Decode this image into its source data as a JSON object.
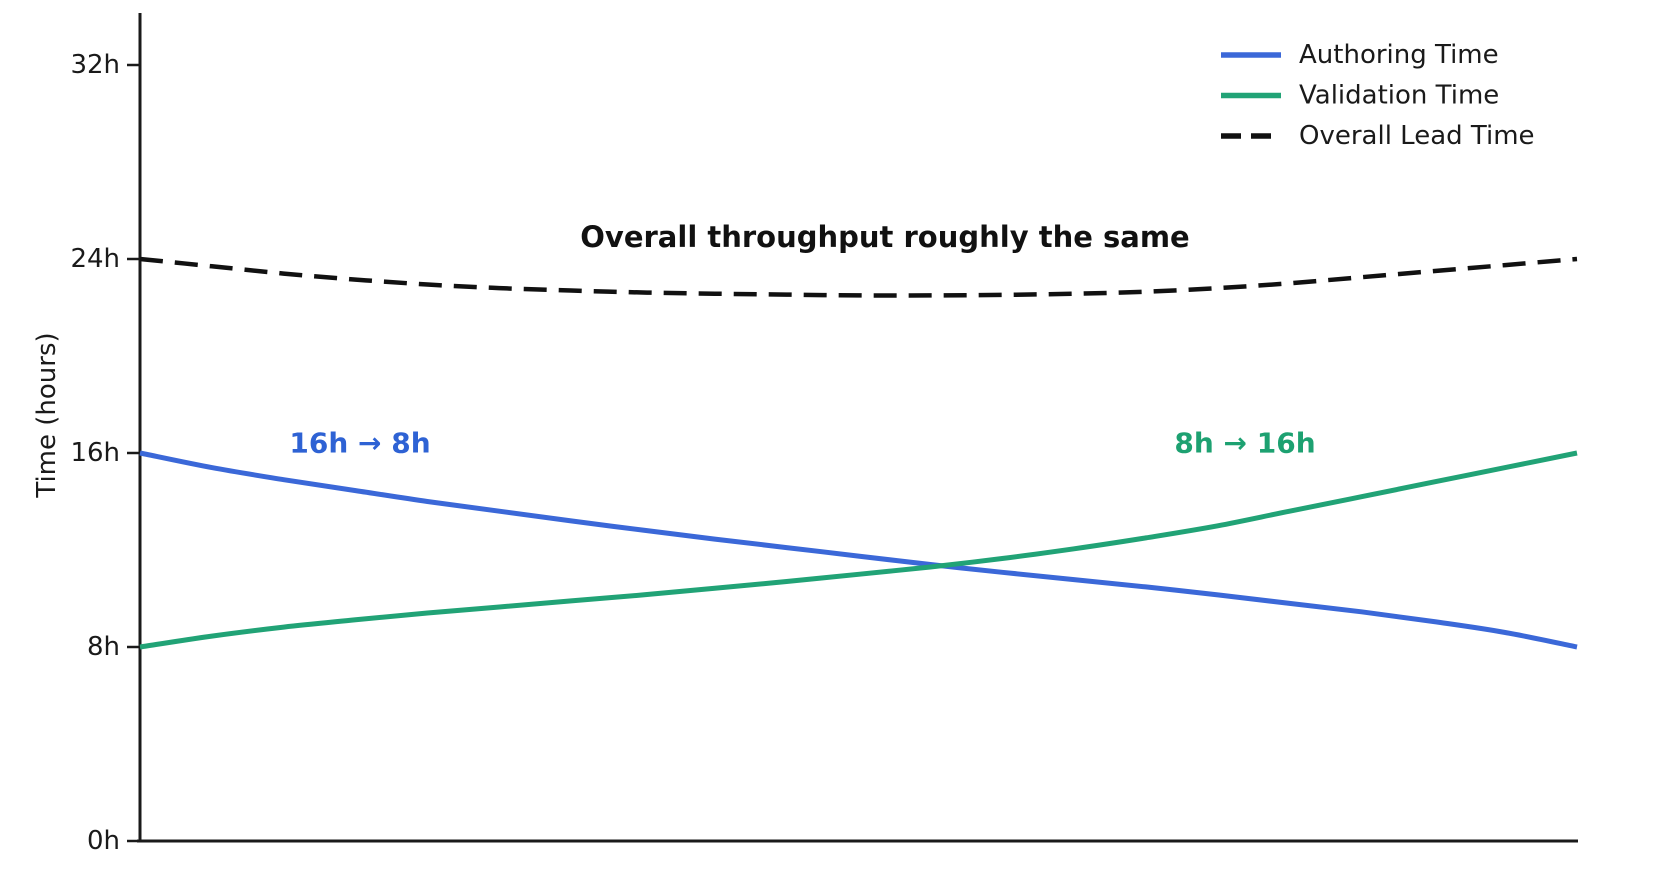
{
  "chart_data": {
    "type": "line",
    "title": "",
    "xlabel": "",
    "ylabel": "Time (hours)",
    "grid": false,
    "background": "#ffffff",
    "axis_color": "#1a1a1a",
    "legend_position": "top-right",
    "y_axis": {
      "range": [
        0,
        34
      ],
      "ticks": [
        {
          "value": 0,
          "label": "0h"
        },
        {
          "value": 8,
          "label": "8h"
        },
        {
          "value": 16,
          "label": "16h"
        },
        {
          "value": 24,
          "label": "24h"
        },
        {
          "value": 32,
          "label": "32h"
        }
      ]
    },
    "x_axis": {
      "range": [
        0,
        1
      ],
      "ticks": []
    },
    "series": [
      {
        "name": "Authoring Time",
        "color": "#3b68d8",
        "line_style": "solid",
        "values": [
          16.0,
          15.4,
          14.9,
          14.45,
          14.0,
          13.6,
          13.2,
          12.82,
          12.45,
          12.1,
          11.75,
          11.4,
          11.08,
          10.78,
          10.48,
          10.15,
          9.8,
          9.45,
          9.05,
          8.6,
          8.0
        ]
      },
      {
        "name": "Validation Time",
        "color": "#21a376",
        "line_style": "solid",
        "values": [
          8.0,
          8.45,
          8.82,
          9.12,
          9.4,
          9.65,
          9.9,
          10.15,
          10.42,
          10.7,
          11.0,
          11.3,
          11.65,
          12.05,
          12.5,
          13.0,
          13.6,
          14.2,
          14.8,
          15.4,
          16.0
        ]
      },
      {
        "name": "Overall Lead Time",
        "color": "#111111",
        "line_style": "dashed",
        "values": [
          24.0,
          23.7,
          23.4,
          23.15,
          22.95,
          22.8,
          22.7,
          22.62,
          22.57,
          22.53,
          22.5,
          22.5,
          22.52,
          22.57,
          22.65,
          22.8,
          23.0,
          23.25,
          23.5,
          23.75,
          24.0
        ]
      }
    ],
    "annotations": [
      {
        "text": "Overall throughput roughly the same",
        "color": "#111111"
      },
      {
        "text": "16h → 8h",
        "color": "#2e62d4"
      },
      {
        "text": "8h → 16h",
        "color": "#1da171"
      }
    ]
  }
}
